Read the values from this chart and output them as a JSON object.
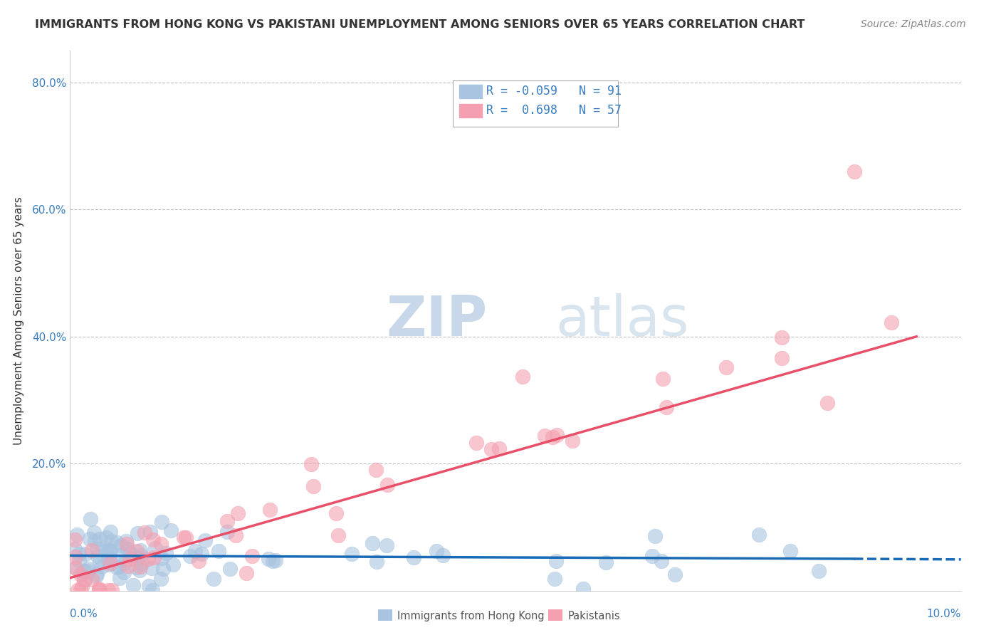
{
  "title": "IMMIGRANTS FROM HONG KONG VS PAKISTANI UNEMPLOYMENT AMONG SENIORS OVER 65 YEARS CORRELATION CHART",
  "source": "Source: ZipAtlas.com",
  "ylabel": "Unemployment Among Seniors over 65 years",
  "xlim": [
    0,
    0.1
  ],
  "ylim": [
    0,
    0.85
  ],
  "yticks": [
    0.0,
    0.2,
    0.4,
    0.6,
    0.8
  ],
  "ytick_labels": [
    "",
    "20.0%",
    "40.0%",
    "60.0%",
    "80.0%"
  ],
  "legend_hk_R": "-0.059",
  "legend_hk_N": "91",
  "legend_pk_R": "0.698",
  "legend_pk_N": "57",
  "hk_color": "#a8c4e0",
  "pk_color": "#f4a0b0",
  "hk_line_color": "#1a6bb5",
  "pk_line_color": "#e8506a",
  "tick_label_color": "#3a7dbf"
}
